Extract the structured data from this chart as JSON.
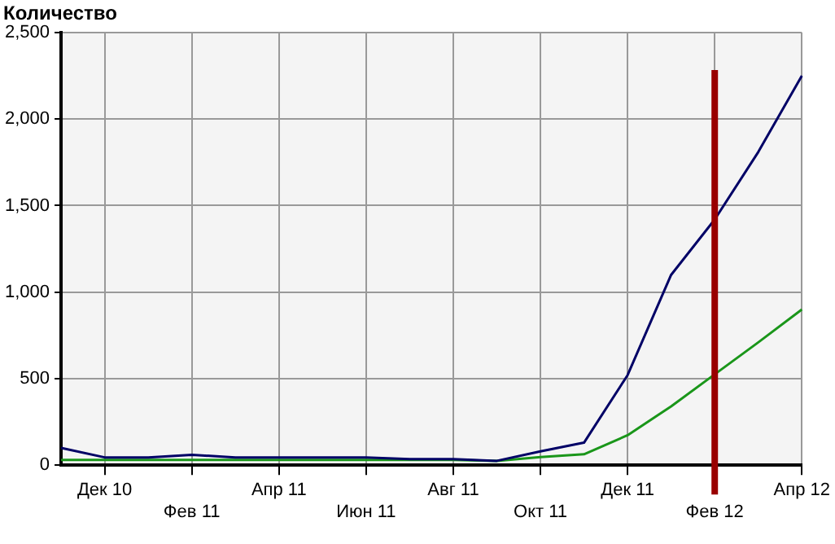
{
  "chart_data": {
    "type": "line",
    "ylabel": "Количество",
    "categories": [
      null,
      "Дек 10",
      null,
      "Фев 11",
      null,
      "Апр 11",
      null,
      "Июн 11",
      null,
      "Авг 11",
      null,
      "Окт 11",
      null,
      "Дек 11",
      null,
      "Фев 12",
      null,
      "Апр 12"
    ],
    "series": [
      {
        "color": "#000066",
        "values": [
          100,
          45,
          45,
          60,
          45,
          45,
          45,
          45,
          35,
          35,
          25,
          80,
          130,
          520,
          1100,
          1420,
          1810,
          2250
        ]
      },
      {
        "color": "#1a961a",
        "values": [
          30,
          30,
          30,
          30,
          30,
          30,
          30,
          30,
          30,
          30,
          25,
          47,
          63,
          173,
          340,
          525,
          710,
          900
        ]
      }
    ],
    "ylim": [
      0,
      2500
    ],
    "yticks": [
      0,
      500,
      {
        "value": 1000,
        "label": "1,000"
      },
      {
        "value": 1500,
        "label": "1,500"
      },
      {
        "value": 2000,
        "label": "2,000"
      },
      {
        "value": 2500,
        "label": "2,500"
      }
    ],
    "ref_lines": [
      {
        "axis": "x",
        "value": "Фев 12",
        "color": "#990000"
      }
    ],
    "grid": true,
    "legend": false,
    "marker": "none",
    "line_style": "solid"
  }
}
